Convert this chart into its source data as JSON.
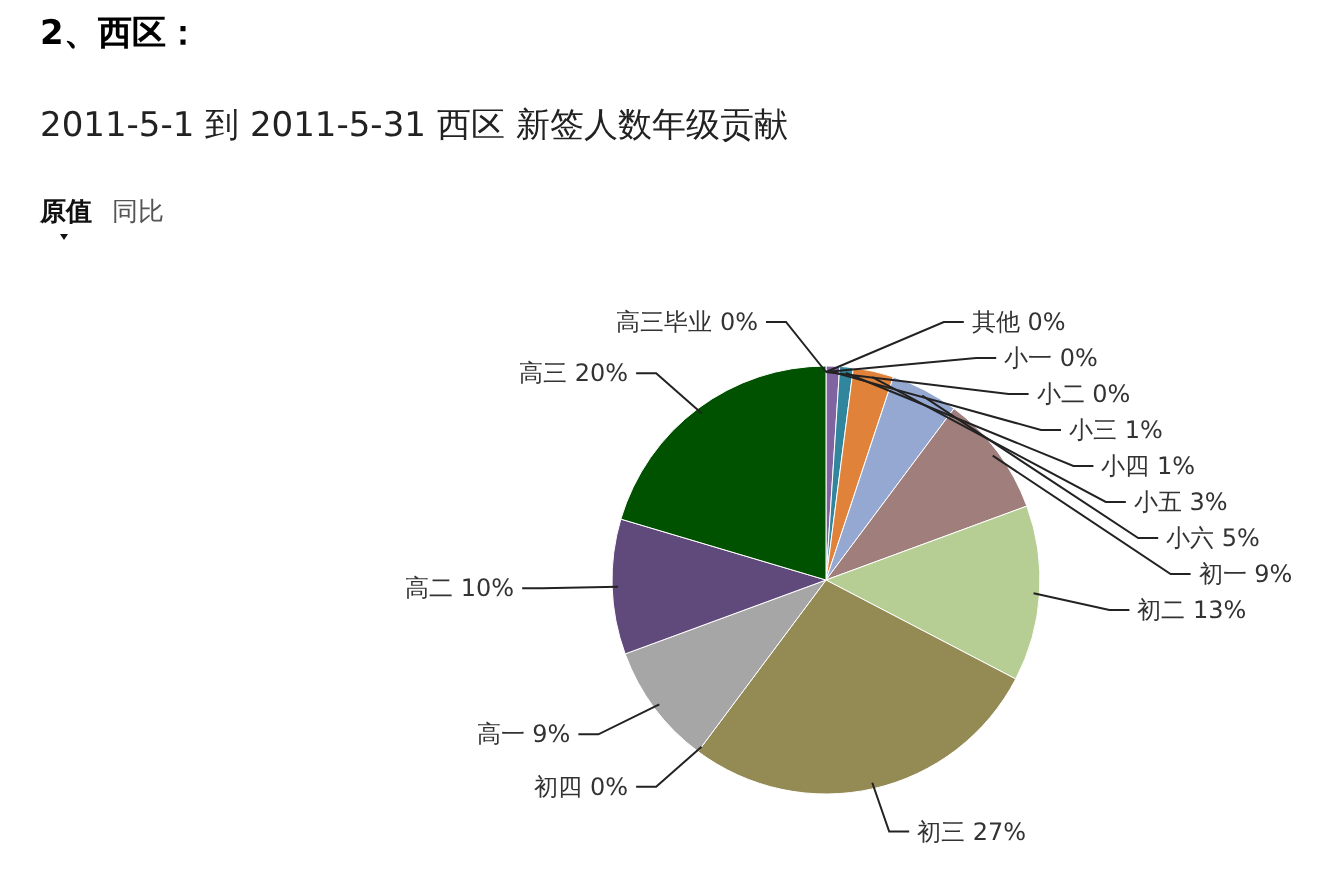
{
  "chart_data": {
    "type": "pie",
    "title": "2、西区：",
    "subtitle": "2011-5-1 到 2011-5-31 西区 新签人数年级贡献",
    "annotations": [
      "原值",
      "同比"
    ],
    "categories": [
      "其他",
      "小一",
      "小二",
      "小三",
      "小四",
      "小五",
      "小六",
      "初一",
      "初二",
      "初三",
      "初四",
      "高一",
      "高二",
      "高三",
      "高三毕业"
    ],
    "values": [
      0,
      0,
      0,
      1,
      1,
      3,
      5,
      9,
      13,
      27,
      0,
      9,
      10,
      20,
      0
    ],
    "value_labels": [
      "0%",
      "0%",
      "0%",
      "1%",
      "1%",
      "3%",
      "5%",
      "9%",
      "13%",
      "27%",
      "0%",
      "9%",
      "10%",
      "20%",
      "0%"
    ],
    "colors": [
      "#c0504d",
      "#7f7f7f",
      "#4bacc6",
      "#8064a2",
      "#31859c",
      "#e0823a",
      "#95a8d2",
      "#a07e7c",
      "#b6cd94",
      "#948a54",
      "#d9d9d9",
      "#a6a6a6",
      "#604a7b",
      "#005100",
      "#e46c0a"
    ]
  }
}
